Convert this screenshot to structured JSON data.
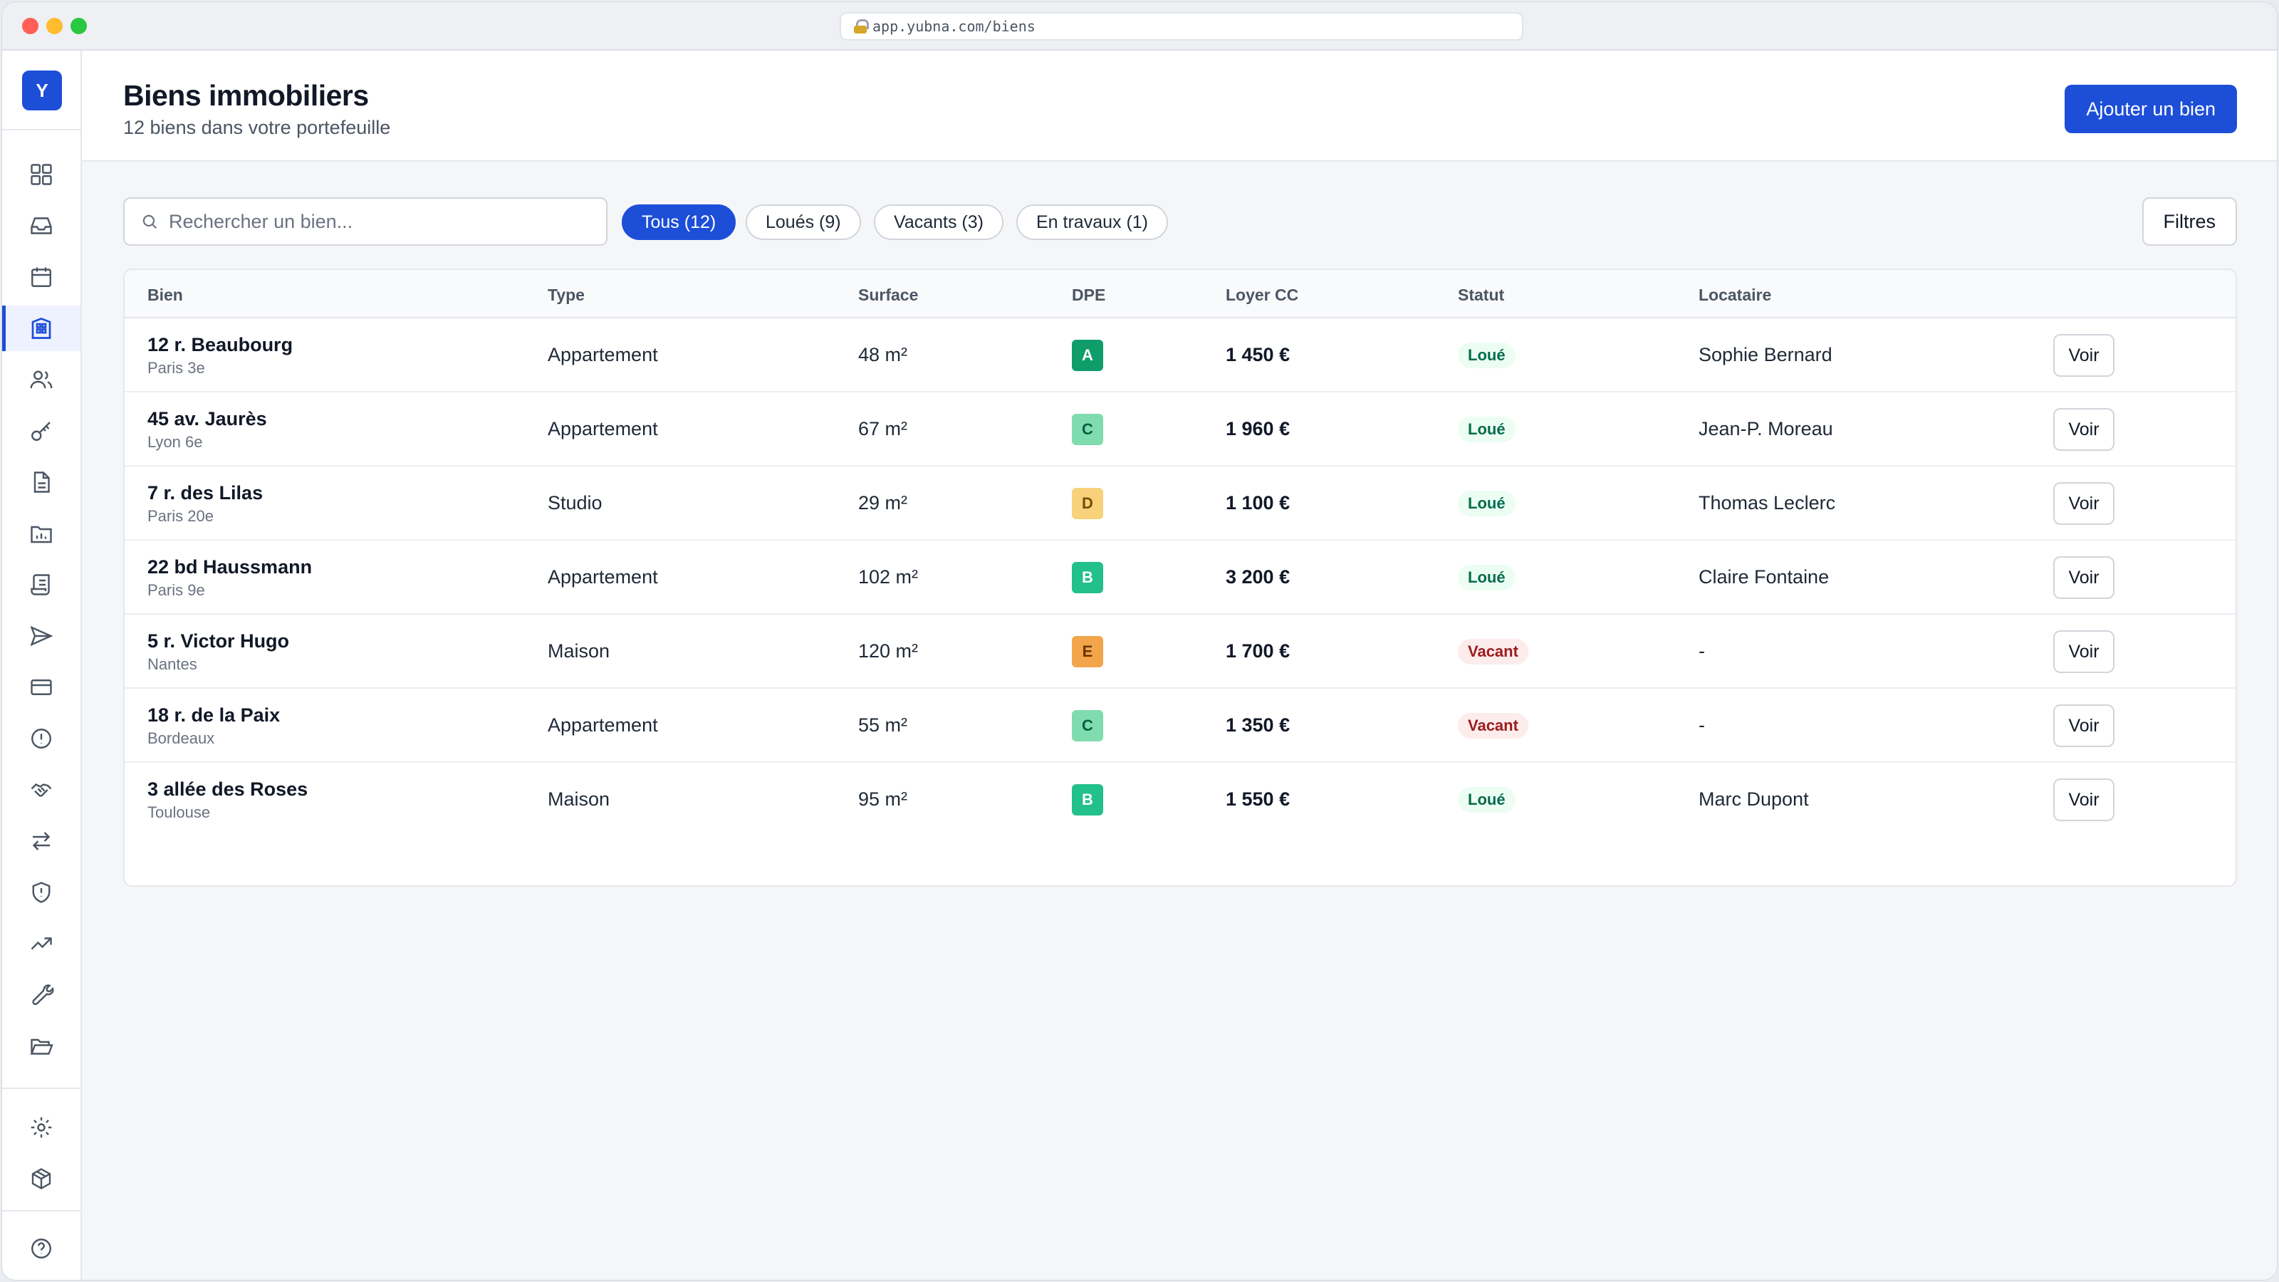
{
  "browser": {
    "url": "app.yubna.com/biens"
  },
  "sidebar": {
    "logo_letter": "Y",
    "items": [
      {
        "icon": "dashboard-icon"
      },
      {
        "icon": "inbox-icon"
      },
      {
        "icon": "calendar-icon"
      },
      {
        "icon": "building-icon",
        "active": true
      },
      {
        "icon": "users-icon"
      },
      {
        "icon": "key-icon"
      },
      {
        "icon": "document-icon"
      },
      {
        "icon": "folder-chart-icon"
      },
      {
        "icon": "receipt-icon"
      },
      {
        "icon": "send-icon"
      },
      {
        "icon": "credit-card-icon"
      },
      {
        "icon": "alert-circle-icon"
      },
      {
        "icon": "handshake-icon"
      },
      {
        "icon": "transfer-icon"
      },
      {
        "icon": "shield-icon"
      },
      {
        "icon": "trending-up-icon"
      },
      {
        "icon": "wrench-icon"
      },
      {
        "icon": "folder-open-icon"
      },
      {
        "icon": "gear-icon"
      },
      {
        "icon": "package-icon"
      },
      {
        "icon": "help-icon"
      }
    ]
  },
  "header": {
    "title": "Biens immobiliers",
    "subtitle": "12 biens dans votre portefeuille",
    "add_button": "Ajouter un bien"
  },
  "toolbar": {
    "search_placeholder": "Rechercher un bien...",
    "chips": [
      {
        "label": "Tous (12)",
        "active": true
      },
      {
        "label": "Loués (9)",
        "active": false
      },
      {
        "label": "Vacants (3)",
        "active": false
      },
      {
        "label": "En travaux (1)",
        "active": false
      }
    ],
    "filters_button": "Filtres"
  },
  "table": {
    "columns": [
      "Bien",
      "Type",
      "Surface",
      "DPE",
      "Loyer CC",
      "Statut",
      "Locataire"
    ],
    "rows": [
      {
        "address": "12 r. Beaubourg",
        "city": "Paris 3e",
        "type": "Appartement",
        "surface": "48 m²",
        "dpe": "A",
        "rent": "1 450 €",
        "status": "Loué",
        "tenant": "Sophie Bernard",
        "action": "Voir"
      },
      {
        "address": "45 av. Jaurès",
        "city": "Lyon 6e",
        "type": "Appartement",
        "surface": "67 m²",
        "dpe": "C",
        "rent": "1 960 €",
        "status": "Loué",
        "tenant": "Jean-P. Moreau",
        "action": "Voir"
      },
      {
        "address": "7 r. des Lilas",
        "city": "Paris 20e",
        "type": "Studio",
        "surface": "29 m²",
        "dpe": "D",
        "rent": "1 100 €",
        "status": "Loué",
        "tenant": "Thomas Leclerc",
        "action": "Voir"
      },
      {
        "address": "22 bd Haussmann",
        "city": "Paris 9e",
        "type": "Appartement",
        "surface": "102 m²",
        "dpe": "B",
        "rent": "3 200 €",
        "status": "Loué",
        "tenant": "Claire Fontaine",
        "action": "Voir"
      },
      {
        "address": "5 r. Victor Hugo",
        "city": "Nantes",
        "type": "Maison",
        "surface": "120 m²",
        "dpe": "E",
        "rent": "1 700 €",
        "status": "Vacant",
        "tenant": "-",
        "action": "Voir"
      },
      {
        "address": "18 r. de la Paix",
        "city": "Bordeaux",
        "type": "Appartement",
        "surface": "55 m²",
        "dpe": "C",
        "rent": "1 350 €",
        "status": "Vacant",
        "tenant": "-",
        "action": "Voir"
      },
      {
        "address": "3 allée des Roses",
        "city": "Toulouse",
        "type": "Maison",
        "surface": "95 m²",
        "dpe": "B",
        "rent": "1 550 €",
        "status": "Loué",
        "tenant": "Marc Dupont",
        "action": "Voir"
      }
    ]
  },
  "colors": {
    "accent": "#1d4ed8",
    "dpe": {
      "A": "#0f9d6b",
      "B": "#22c08a",
      "C": "#7fdcae",
      "D": "#f7d27a",
      "E": "#f2a54a"
    },
    "status_loue_bg": "#ecfdf3",
    "status_vacant_bg": "#fdecec"
  }
}
